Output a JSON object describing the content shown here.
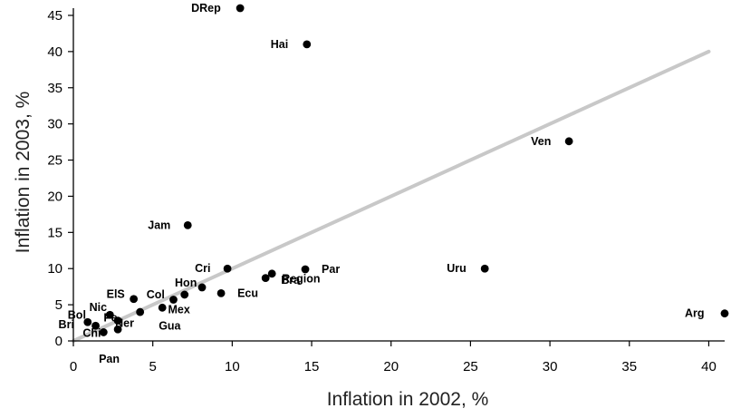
{
  "chart_data": {
    "type": "scatter",
    "title": "",
    "xlabel": "Inflation in 2002, %",
    "ylabel": "Inflation in 2003, %",
    "xlim": [
      0,
      41
    ],
    "ylim": [
      0,
      46
    ],
    "xticks": [
      0,
      5,
      10,
      15,
      20,
      25,
      30,
      35,
      40
    ],
    "yticks": [
      0,
      5,
      10,
      15,
      20,
      25,
      30,
      35,
      40,
      45
    ],
    "grid": false,
    "trend_line": {
      "from": [
        0,
        0
      ],
      "to": [
        40,
        40
      ],
      "color": "#c8c8c8"
    },
    "points": [
      {
        "label": "DRep",
        "x": 10.5,
        "y": 46.0
      },
      {
        "label": "Hai",
        "x": 14.7,
        "y": 41.0
      },
      {
        "label": "Ven",
        "x": 31.2,
        "y": 27.6
      },
      {
        "label": "Jam",
        "x": 7.2,
        "y": 16.0
      },
      {
        "label": "Uru",
        "x": 25.9,
        "y": 10.0
      },
      {
        "label": "Par",
        "x": 14.6,
        "y": 9.9
      },
      {
        "label": "Cri",
        "x": 9.7,
        "y": 10.0
      },
      {
        "label": "Bra",
        "x": 12.5,
        "y": 9.3
      },
      {
        "label": "Region",
        "x": 12.1,
        "y": 8.7
      },
      {
        "label": "Ecu",
        "x": 9.3,
        "y": 6.6
      },
      {
        "label": "Hon",
        "x": 8.1,
        "y": 7.4
      },
      {
        "label": "Col",
        "x": 7.0,
        "y": 6.4
      },
      {
        "label": "Mex",
        "x": 6.3,
        "y": 5.7
      },
      {
        "label": "Gua",
        "x": 5.6,
        "y": 4.6
      },
      {
        "label": "Arg",
        "x": 41.0,
        "y": 3.8
      },
      {
        "label": "ElS",
        "x": 3.8,
        "y": 5.8
      },
      {
        "label": "Nic",
        "x": 4.2,
        "y": 4.0
      },
      {
        "label": "Bol",
        "x": 0.9,
        "y": 2.6
      },
      {
        "label": "Bri",
        "x": 1.4,
        "y": 2.1
      },
      {
        "label": "Chi",
        "x": 1.9,
        "y": 1.2
      },
      {
        "label": "Pe",
        "x": 2.3,
        "y": 3.6
      },
      {
        "label": "Ner",
        "x": 2.8,
        "y": 2.8
      },
      {
        "label": "Pan",
        "x": 2.8,
        "y": 1.6
      }
    ]
  }
}
